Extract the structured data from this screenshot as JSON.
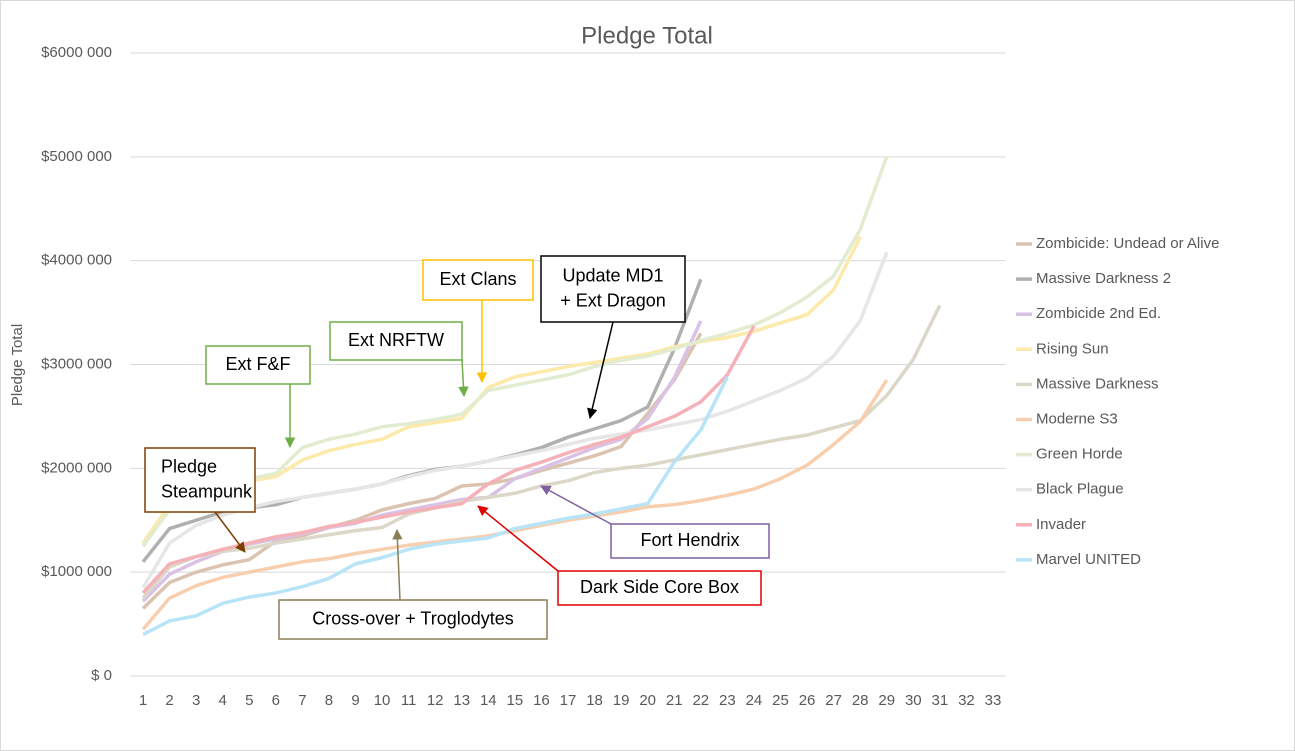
{
  "chart_data": {
    "type": "line",
    "title": "Pledge Total",
    "y_axis_label": "Pledge Total",
    "categories": [
      "1",
      "2",
      "3",
      "4",
      "5",
      "6",
      "7",
      "8",
      "9",
      "10",
      "11",
      "12",
      "13",
      "14",
      "15",
      "16",
      "17",
      "18",
      "19",
      "20",
      "21",
      "22",
      "23",
      "24",
      "25",
      "26",
      "27",
      "28",
      "29",
      "30",
      "31",
      "32",
      "33"
    ],
    "ylim": [
      0,
      6000000
    ],
    "yticks": [
      {
        "value": 0,
        "label": "$ 0"
      },
      {
        "value": 1000000,
        "label": "$1000 000"
      },
      {
        "value": 2000000,
        "label": "$2000 000"
      },
      {
        "value": 3000000,
        "label": "$3000 000"
      },
      {
        "value": 4000000,
        "label": "$4000 000"
      },
      {
        "value": 5000000,
        "label": "$5000 000"
      },
      {
        "value": 6000000,
        "label": "$6000 000"
      }
    ],
    "grid": true,
    "legend": "right",
    "series": [
      {
        "name": "Zombicide: Undead or Alive",
        "color": "#dbc3b0",
        "values": [
          650000,
          900000,
          1000000,
          1070000,
          1120000,
          1300000,
          1350000,
          1430000,
          1500000,
          1600000,
          1660000,
          1710000,
          1830000,
          1850000,
          1900000,
          1980000,
          2050000,
          2120000,
          2210000,
          2530000,
          2850000,
          3300000,
          null,
          null,
          null,
          null,
          null,
          null,
          null,
          null,
          null,
          null,
          null
        ]
      },
      {
        "name": "Massive Darkness 2",
        "color": "#b0b0b0",
        "values": [
          1100000,
          1420000,
          1500000,
          1580000,
          1620000,
          1650000,
          1720000,
          1760000,
          1800000,
          1850000,
          1930000,
          1990000,
          2020000,
          2070000,
          2130000,
          2200000,
          2300000,
          2380000,
          2460000,
          2590000,
          3150000,
          3820000,
          null,
          null,
          null,
          null,
          null,
          null,
          null,
          null,
          null,
          null,
          null
        ]
      },
      {
        "name": "Zombicide 2nd Ed.",
        "color": "#d9c2e6",
        "values": [
          720000,
          980000,
          1100000,
          1200000,
          1270000,
          1320000,
          1370000,
          1430000,
          1470000,
          1550000,
          1600000,
          1650000,
          1700000,
          1720000,
          1900000,
          2000000,
          2100000,
          2200000,
          2280000,
          2480000,
          2870000,
          3420000,
          null,
          null,
          null,
          null,
          null,
          null,
          null,
          null,
          null,
          null,
          null
        ]
      },
      {
        "name": "Rising Sun",
        "color": "#fde9a9",
        "values": [
          1280000,
          1650000,
          1780000,
          1830000,
          1880000,
          1920000,
          2080000,
          2170000,
          2230000,
          2280000,
          2400000,
          2440000,
          2480000,
          2780000,
          2880000,
          2930000,
          2980000,
          3020000,
          3060000,
          3100000,
          3170000,
          3220000,
          3260000,
          3320000,
          3400000,
          3480000,
          3720000,
          4230000,
          null,
          null,
          null,
          null,
          null
        ]
      },
      {
        "name": "Massive Darkness",
        "color": "#dcd8c8",
        "values": [
          750000,
          1050000,
          1150000,
          1200000,
          1230000,
          1280000,
          1320000,
          1360000,
          1400000,
          1430000,
          1560000,
          1620000,
          1680000,
          1720000,
          1760000,
          1830000,
          1880000,
          1960000,
          2000000,
          2030000,
          2080000,
          2130000,
          2180000,
          2230000,
          2280000,
          2320000,
          2390000,
          2460000,
          2700000,
          3050000,
          3570000,
          null,
          null
        ]
      },
      {
        "name": "Moderne S3",
        "color": "#f8cfae",
        "values": [
          450000,
          750000,
          870000,
          950000,
          1000000,
          1050000,
          1100000,
          1130000,
          1180000,
          1220000,
          1260000,
          1290000,
          1320000,
          1350000,
          1400000,
          1450000,
          1500000,
          1540000,
          1580000,
          1630000,
          1650000,
          1690000,
          1740000,
          1800000,
          1900000,
          2030000,
          2230000,
          2450000,
          2850000,
          null,
          null,
          null,
          null
        ]
      },
      {
        "name": "Green Horde",
        "color": "#e2ecd0",
        "values": [
          1250000,
          1600000,
          1750000,
          1850000,
          1900000,
          1950000,
          2200000,
          2280000,
          2330000,
          2400000,
          2430000,
          2470000,
          2520000,
          2750000,
          2800000,
          2850000,
          2900000,
          2980000,
          3040000,
          3080000,
          3150000,
          3230000,
          3300000,
          3380000,
          3500000,
          3650000,
          3850000,
          4300000,
          5000000,
          null,
          null,
          null,
          null
        ]
      },
      {
        "name": "Black Plague",
        "color": "#e6e6e6",
        "values": [
          850000,
          1280000,
          1450000,
          1550000,
          1620000,
          1680000,
          1720000,
          1760000,
          1800000,
          1850000,
          1920000,
          1980000,
          2020000,
          2070000,
          2120000,
          2170000,
          2230000,
          2290000,
          2330000,
          2370000,
          2420000,
          2470000,
          2550000,
          2650000,
          2750000,
          2870000,
          3080000,
          3420000,
          4080000,
          null,
          null,
          null,
          null
        ]
      },
      {
        "name": "Invader",
        "color": "#f4b2b8",
        "values": [
          800000,
          1080000,
          1150000,
          1220000,
          1280000,
          1340000,
          1380000,
          1440000,
          1480000,
          1530000,
          1580000,
          1620000,
          1660000,
          1850000,
          1980000,
          2060000,
          2150000,
          2230000,
          2300000,
          2400000,
          2500000,
          2640000,
          2900000,
          3370000,
          null,
          null,
          null,
          null,
          null,
          null,
          null,
          null,
          null
        ]
      },
      {
        "name": "Marvel UNITED",
        "color": "#b7e4f6",
        "values": [
          400000,
          530000,
          580000,
          700000,
          760000,
          800000,
          860000,
          940000,
          1080000,
          1140000,
          1220000,
          1270000,
          1300000,
          1330000,
          1420000,
          1470000,
          1520000,
          1560000,
          1610000,
          1660000,
          2060000,
          2370000,
          2880000,
          null,
          null,
          null,
          null,
          null,
          null,
          null,
          null,
          null,
          null
        ]
      }
    ],
    "annotations": [
      {
        "lines": [
          "Ext Clans"
        ],
        "color": "#ffc000"
      },
      {
        "lines": [
          "Update MD1",
          "+ Ext Dragon"
        ],
        "color": "#000000"
      },
      {
        "lines": [
          "Ext NRFTW"
        ],
        "color": "#70ad47"
      },
      {
        "lines": [
          "Ext F&F"
        ],
        "color": "#70ad47"
      },
      {
        "lines": [
          "Pledge",
          "Steampunk"
        ],
        "color": "#7f3f00"
      },
      {
        "lines": [
          "Fort Hendrix"
        ],
        "color": "#7f5fa0"
      },
      {
        "lines": [
          "Dark Side Core Box"
        ],
        "color": "#e00000"
      },
      {
        "lines": [
          "Cross-over + Troglodytes"
        ],
        "color": "#8b7d55"
      }
    ]
  }
}
